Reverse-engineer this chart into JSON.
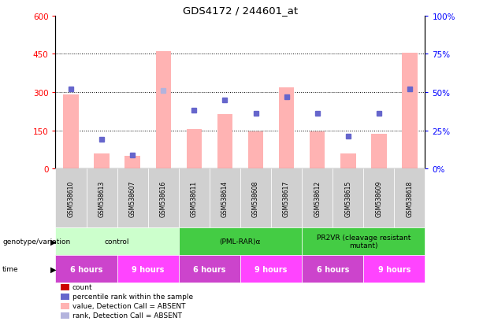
{
  "title": "GDS4172 / 244601_at",
  "samples": [
    "GSM538610",
    "GSM538613",
    "GSM538607",
    "GSM538616",
    "GSM538611",
    "GSM538614",
    "GSM538608",
    "GSM538617",
    "GSM538612",
    "GSM538615",
    "GSM538609",
    "GSM538618"
  ],
  "bar_values": [
    290,
    60,
    50,
    460,
    155,
    215,
    145,
    320,
    145,
    60,
    135,
    455
  ],
  "rank_pct_values": [
    52,
    19,
    9,
    51,
    38,
    45,
    36,
    47,
    36,
    21,
    36,
    52
  ],
  "bar_absent": [
    true,
    true,
    true,
    true,
    true,
    true,
    true,
    true,
    true,
    true,
    true,
    true
  ],
  "rank_absent": [
    false,
    false,
    false,
    true,
    false,
    false,
    false,
    false,
    false,
    false,
    false,
    false
  ],
  "ylim_left": [
    0,
    600
  ],
  "ylim_right": [
    0,
    100
  ],
  "yticks_left": [
    0,
    150,
    300,
    450,
    600
  ],
  "yticks_right": [
    0,
    25,
    50,
    75,
    100
  ],
  "ytick_labels_left": [
    "0",
    "150",
    "300",
    "450",
    "600"
  ],
  "ytick_labels_right": [
    "0%",
    "25%",
    "50%",
    "75%",
    "100%"
  ],
  "bar_color_present": "#cc0000",
  "bar_color_absent": "#ffb3b3",
  "rank_color_present": "#6666cc",
  "rank_color_absent": "#b3b3dd",
  "geno_groups": [
    {
      "label": "control",
      "start": 0,
      "end": 4,
      "color": "#ccffcc"
    },
    {
      "label": "(PML-RAR)α",
      "start": 4,
      "end": 8,
      "color": "#44cc44"
    },
    {
      "label": "PR2VR (cleavage resistant\nmutant)",
      "start": 8,
      "end": 12,
      "color": "#44cc44"
    }
  ],
  "time_groups": [
    {
      "label": "6 hours",
      "start": 0,
      "end": 2,
      "color": "#cc44cc"
    },
    {
      "label": "9 hours",
      "start": 2,
      "end": 4,
      "color": "#ff44ff"
    },
    {
      "label": "6 hours",
      "start": 4,
      "end": 6,
      "color": "#cc44cc"
    },
    {
      "label": "9 hours",
      "start": 6,
      "end": 8,
      "color": "#ff44ff"
    },
    {
      "label": "6 hours",
      "start": 8,
      "end": 10,
      "color": "#cc44cc"
    },
    {
      "label": "9 hours",
      "start": 10,
      "end": 12,
      "color": "#ff44ff"
    }
  ],
  "bg_color": "#ffffff",
  "legend_items": [
    {
      "label": "count",
      "color": "#cc0000"
    },
    {
      "label": "percentile rank within the sample",
      "color": "#6666cc"
    },
    {
      "label": "value, Detection Call = ABSENT",
      "color": "#ffb3b3"
    },
    {
      "label": "rank, Detection Call = ABSENT",
      "color": "#b3b3dd"
    }
  ]
}
